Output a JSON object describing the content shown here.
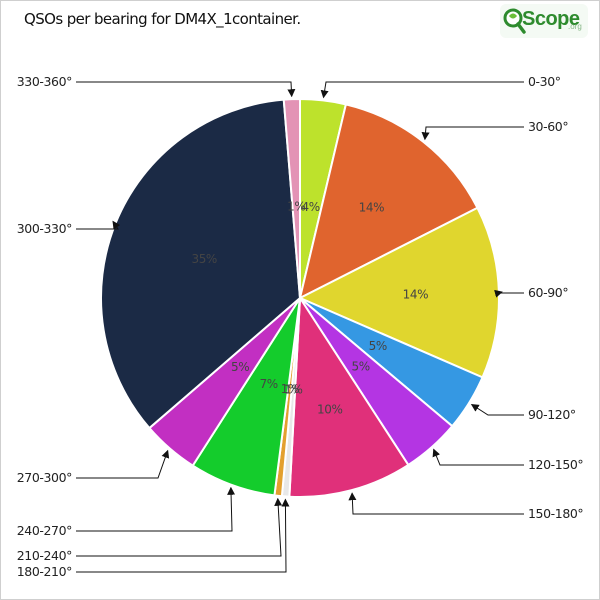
{
  "title": "QSOs per bearing for DM4X_1container.",
  "logo": {
    "text": "Scope",
    "suffix": ".org"
  },
  "chart_data": {
    "type": "pie",
    "title": "QSOs per bearing for DM4X_1container.",
    "legend": "callout labels around pie",
    "slices": [
      {
        "label": "0-30°",
        "percent_label": "4%",
        "value": 3.7,
        "color": "#bde22c"
      },
      {
        "label": "30-60°",
        "percent_label": "14%",
        "value": 13.8,
        "color": "#e0642e"
      },
      {
        "label": "60-90°",
        "percent_label": "14%",
        "value": 14.0,
        "color": "#e0d62e"
      },
      {
        "label": "90-120°",
        "percent_label": "5%",
        "value": 4.6,
        "color": "#3598e3"
      },
      {
        "label": "120-150°",
        "percent_label": "5%",
        "value": 4.7,
        "color": "#b435e3"
      },
      {
        "label": "150-180°",
        "percent_label": "10%",
        "value": 10.0,
        "color": "#e0307a"
      },
      {
        "label": "180-210°",
        "percent_label": "1%",
        "value": 0.6,
        "color": "#e8e8e8"
      },
      {
        "label": "210-240°",
        "percent_label": "1%",
        "value": 0.6,
        "color": "#e3a02e"
      },
      {
        "label": "240-270°",
        "percent_label": "7%",
        "value": 7.0,
        "color": "#14cc2c"
      },
      {
        "label": "270-300°",
        "percent_label": "5%",
        "value": 4.6,
        "color": "#c22fc2"
      },
      {
        "label": "300-330°",
        "percent_label": "35%",
        "value": 35.0,
        "color": "#1b2a45"
      },
      {
        "label": "330-360°",
        "percent_label": "1%",
        "value": 1.3,
        "color": "#e393b5"
      }
    ]
  }
}
